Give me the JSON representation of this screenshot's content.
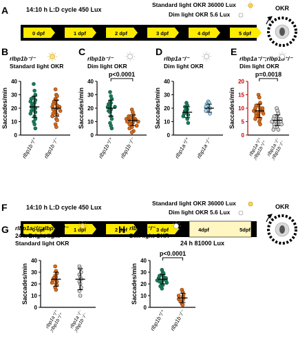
{
  "panel_letters": {
    "A": "A",
    "B": "B",
    "C": "C",
    "D": "D",
    "E": "E",
    "F": "F",
    "G": "G",
    "H": "H"
  },
  "timeline_a": {
    "cycle_label": "14:10 h L:D cycle 450 Lux",
    "standard_label": "Standard light OKR 36000 Lux",
    "dim_label": "Dim light OKR 5.6 Lux",
    "days": [
      "0 dpf",
      "1 dpf",
      "2 dpf",
      "3 dpf",
      "4 dpf",
      "5 dpf"
    ],
    "okr_title": "OKR"
  },
  "timeline_f": {
    "cycle_label": "14:10 h L:D cycle 450 Lux",
    "standard_label": "Standard light OKR 36000 Lux",
    "dim_label": "Dim light OKR 5.6 Lux",
    "days": [
      "0 dpf",
      "1 dpf",
      "2 dpf",
      "3 dpf",
      "4dpf",
      "5dpf"
    ],
    "bright_label": "24 h 81000 Lux",
    "okr_title": "OKR"
  },
  "colors": {
    "green": "#1b7a5a",
    "orange": "#d96b1a",
    "lightblue": "#a9d6ee",
    "grey": "#d9d9d9",
    "yellow": "#ffeb00",
    "pale_yellow": "#fff6c2",
    "red_axis": "#c00000"
  },
  "chart_data": [
    {
      "id": "B",
      "type": "scatter",
      "title_lines": [
        "rlbp1b⁻/⁻",
        "Standard light OKR"
      ],
      "ylabel": "Saccades/min",
      "ylim": [
        0,
        40
      ],
      "yticks": [
        0,
        10,
        20,
        30,
        40
      ],
      "categories": [
        "rlbp1b⁺/⁺",
        "rlbp1b⁻/⁻"
      ],
      "series": [
        {
          "mean": 21,
          "sd": 8,
          "points": [
            38,
            33,
            30,
            28,
            27,
            26,
            25,
            24,
            23,
            22,
            21,
            20,
            19,
            18,
            17,
            16,
            14,
            12,
            10,
            8,
            5
          ]
        },
        {
          "mean": 20,
          "sd": 6,
          "points": [
            34,
            30,
            29,
            27,
            26,
            25,
            24,
            23,
            22,
            21,
            21,
            20,
            19,
            19,
            18,
            17,
            16,
            15,
            14,
            12,
            11,
            8,
            6
          ]
        }
      ],
      "pvalue": ""
    },
    {
      "id": "C",
      "type": "scatter",
      "title_lines": [
        "rlbp1b⁻/⁻",
        "Dim light OKR"
      ],
      "ylabel": "Saccades/min",
      "ylim": [
        0,
        40
      ],
      "yticks": [
        0,
        10,
        20,
        30,
        40
      ],
      "categories": [
        "rlbp1b⁺/⁺",
        "rlbp1b⁻/⁻"
      ],
      "series": [
        {
          "mean": 20,
          "sd": 6,
          "points": [
            32,
            29,
            27,
            25,
            24,
            23,
            22,
            21,
            21,
            20,
            19,
            18,
            17,
            14,
            12,
            9,
            7,
            5
          ]
        },
        {
          "mean": 11,
          "sd": 4,
          "points": [
            19,
            17,
            15,
            14,
            13,
            13,
            12,
            12,
            11,
            11,
            11,
            10,
            10,
            9,
            9,
            8,
            8,
            7,
            6,
            5,
            3,
            2
          ]
        }
      ],
      "pvalue": "p<0.0001"
    },
    {
      "id": "D",
      "type": "scatter",
      "title_lines": [
        "rlbp1a⁻/⁻",
        "Dim light OKR"
      ],
      "ylabel": "Saccades/min",
      "ylim": [
        0,
        40
      ],
      "yticks": [
        0,
        10,
        20,
        30,
        40
      ],
      "categories": [
        "rlbp1a⁺/⁺",
        "rlbp1a⁻/⁻"
      ],
      "series": [
        {
          "mean": 17,
          "sd": 4,
          "points": [
            24,
            22,
            21,
            20,
            19,
            18,
            17,
            16,
            15,
            14,
            12,
            9
          ]
        },
        {
          "mean": 20,
          "sd": 3,
          "points": [
            25,
            24,
            23,
            22,
            21,
            20,
            19,
            18,
            16
          ]
        }
      ],
      "pvalue": ""
    },
    {
      "id": "E",
      "type": "scatter",
      "title_lines": [
        "rlbp1a⁻/⁻;rlbp1b⁻/⁻",
        "Dim light OKR"
      ],
      "ylabel": "Saccades/min",
      "ylim": [
        0,
        20
      ],
      "yticks": [
        0,
        5,
        10,
        15,
        20
      ],
      "categories": [
        "rlbp1a⁺/⁺ ;rlbp1b⁺/⁺",
        "rlbp1a⁻/⁻ ;rlbp1b⁻/⁻"
      ],
      "series": [
        {
          "mean": 9,
          "sd": 2.5,
          "points": [
            15,
            14,
            12,
            11,
            11,
            10,
            10,
            10,
            9,
            9,
            9,
            9,
            8,
            8,
            8,
            7,
            7,
            6,
            6,
            5,
            4
          ]
        },
        {
          "mean": 5.5,
          "sd": 2,
          "points": [
            10,
            9,
            8,
            7,
            7,
            6,
            6,
            6,
            5,
            5,
            5,
            5,
            4,
            4,
            4,
            3,
            3,
            2,
            2
          ]
        }
      ],
      "pvalue": "p=0.0018"
    },
    {
      "id": "G",
      "type": "scatter",
      "title_lines": [
        "rlbp1a⁻/⁻;rlbp1b⁻/⁻",
        "24 h Bright light",
        "Standard light OKR"
      ],
      "ylabel": "Saccades/min",
      "ylim": [
        0,
        40
      ],
      "yticks": [
        0,
        10,
        20,
        30,
        40
      ],
      "categories": [
        "rlbp1a⁺/⁺ ;rlbp1b⁺/⁺",
        "rlbp1a⁻/⁻ ;rlbp1b⁻/⁻"
      ],
      "series": [
        {
          "mean": 24,
          "sd": 6,
          "points": [
            35,
            31,
            29,
            27,
            26,
            25,
            24,
            23,
            22,
            21,
            20,
            19,
            17,
            15
          ]
        },
        {
          "mean": 24,
          "sd": 9,
          "points": [
            35,
            33,
            30,
            28,
            26,
            24,
            22,
            20,
            17,
            14,
            10
          ]
        }
      ],
      "pvalue": ""
    },
    {
      "id": "H",
      "type": "scatter",
      "title_lines": [
        "rlbp1b⁻/⁻",
        "Dim light OKR"
      ],
      "ylabel": "Saccades/min",
      "ylim": [
        0,
        40
      ],
      "yticks": [
        0,
        10,
        20,
        30,
        40
      ],
      "categories": [
        "rlbp1b⁺/⁺",
        "rlbp1b⁻/⁻"
      ],
      "series": [
        {
          "mean": 24,
          "sd": 4,
          "points": [
            32,
            30,
            29,
            28,
            27,
            26,
            25,
            25,
            24,
            24,
            23,
            23,
            22,
            22,
            21,
            20,
            19,
            18,
            16
          ]
        },
        {
          "mean": 8,
          "sd": 4,
          "points": [
            15,
            13,
            11,
            10,
            9,
            8,
            7,
            6,
            5,
            3,
            2
          ]
        }
      ],
      "pvalue": "p<0.0001"
    }
  ]
}
